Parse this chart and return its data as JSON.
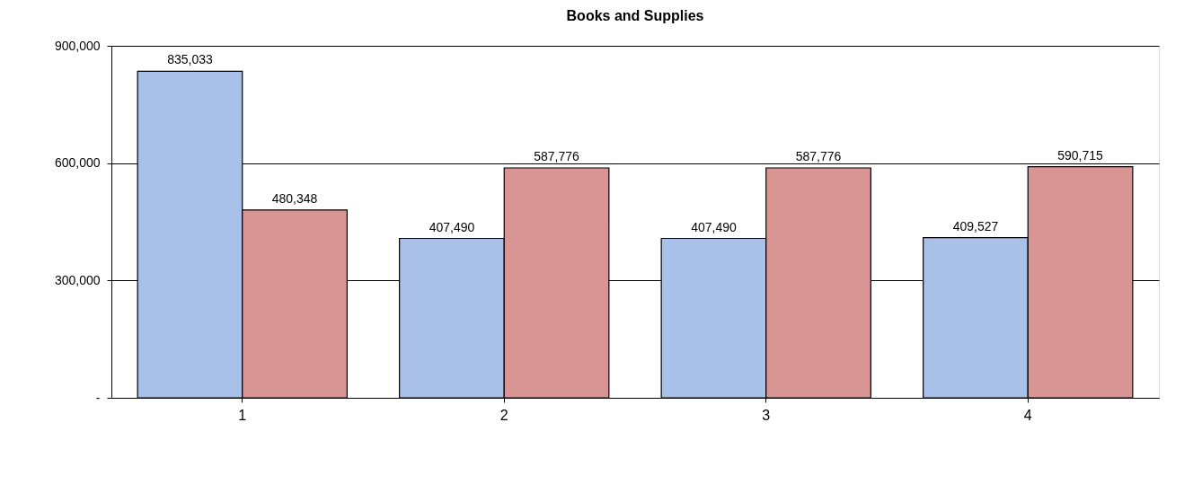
{
  "chart_data": {
    "type": "bar",
    "title": "Books and Supplies",
    "categories": [
      "1",
      "2",
      "3",
      "4"
    ],
    "series": [
      {
        "color": "#a9c0e8",
        "values": [
          835033,
          407490,
          407490,
          409527
        ],
        "value_labels": [
          "835,033",
          "407,490",
          "407,490",
          "409,527"
        ]
      },
      {
        "color": "#d99594",
        "values": [
          480348,
          587776,
          587776,
          590715
        ],
        "value_labels": [
          "480,348",
          "587,776",
          "587,776",
          "590,715"
        ]
      }
    ],
    "ylim": [
      0,
      900000
    ],
    "yticks": [
      {
        "value": 0,
        "label": "-"
      },
      {
        "value": 300000,
        "label": "300,000"
      },
      {
        "value": 600000,
        "label": "600,000"
      },
      {
        "value": 900000,
        "label": "900,000"
      }
    ],
    "grid": "y",
    "legend": false
  }
}
